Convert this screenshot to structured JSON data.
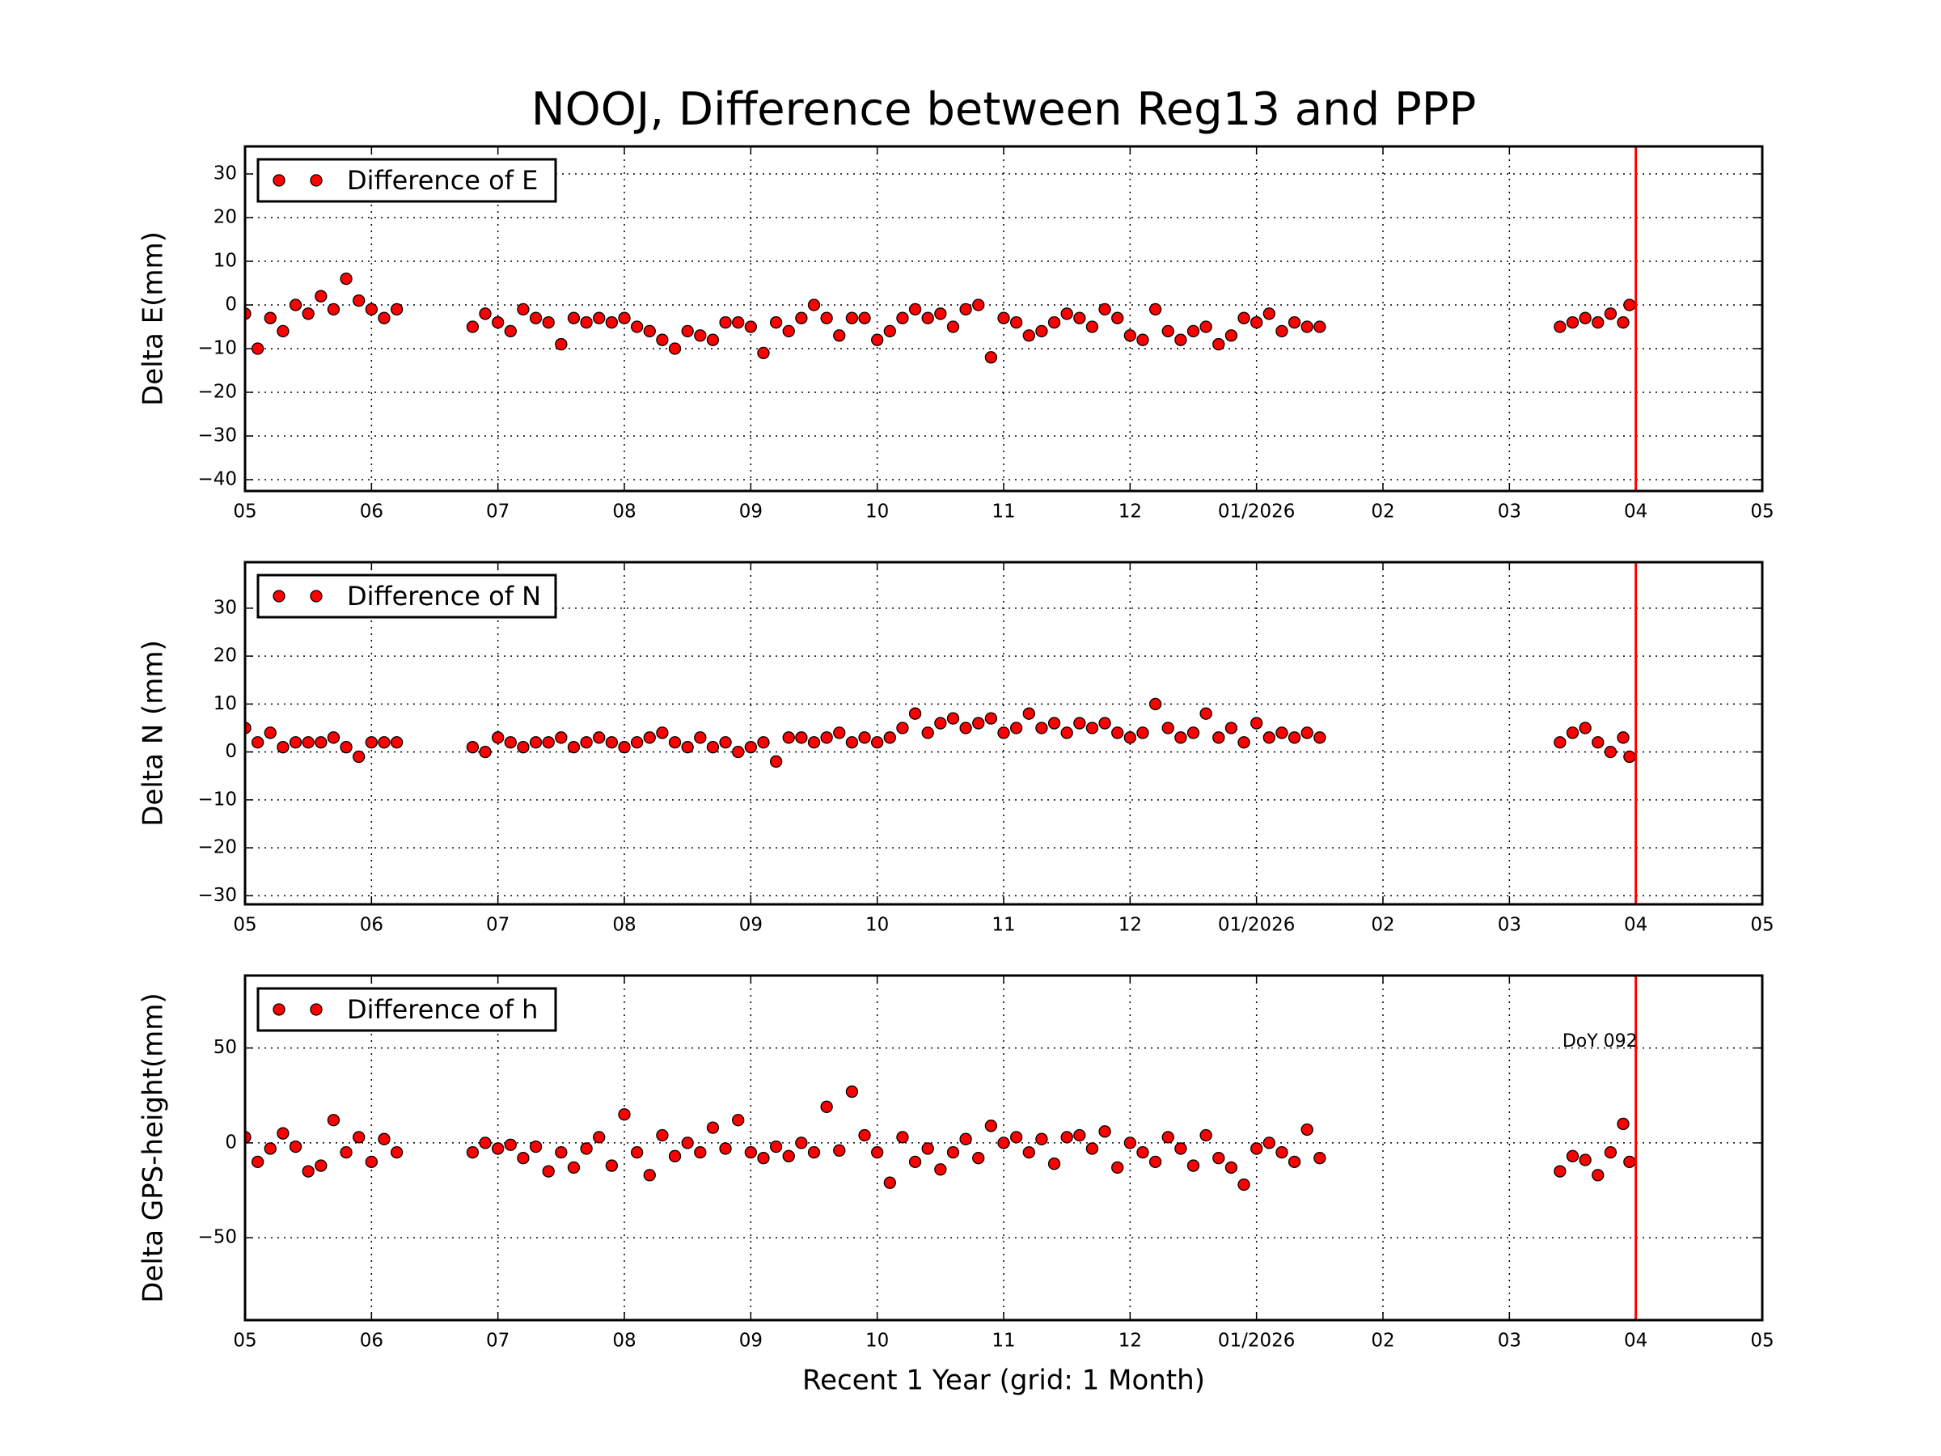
{
  "title": "NOOJ, Difference between Reg13 and PPP",
  "xlabel": "Recent 1 Year (grid: 1 Month)",
  "chart_data": [
    {
      "type": "scatter",
      "ylabel": "Delta E(mm)",
      "grid": true,
      "legend": "upper left",
      "xlim": [
        0,
        12
      ],
      "xticks": [
        {
          "value": 0,
          "label": "05"
        },
        {
          "value": 1,
          "label": "06"
        },
        {
          "value": 2,
          "label": "07"
        },
        {
          "value": 3,
          "label": "08"
        },
        {
          "value": 4,
          "label": "09"
        },
        {
          "value": 5,
          "label": "10"
        },
        {
          "value": 6,
          "label": "11"
        },
        {
          "value": 7,
          "label": "12"
        },
        {
          "value": 8,
          "label": "01/2026"
        },
        {
          "value": 9,
          "label": "02"
        },
        {
          "value": 10,
          "label": "03"
        },
        {
          "value": 11,
          "label": "04"
        },
        {
          "value": 12,
          "label": "05"
        }
      ],
      "ylim": [
        -42.6,
        36.3
      ],
      "yticks": [
        {
          "value": -40,
          "label": "−40"
        },
        {
          "value": -30,
          "label": "−30"
        },
        {
          "value": -20,
          "label": "−20"
        },
        {
          "value": -10,
          "label": "−10"
        },
        0,
        10,
        20,
        30
      ],
      "vline": {
        "x": 11,
        "color": "#ff0000"
      },
      "x": [
        0,
        0.1,
        0.2,
        0.3,
        0.4,
        0.5,
        0.6,
        0.7,
        0.8,
        0.9,
        1.0,
        1.1,
        1.2,
        1.8,
        1.9,
        2.0,
        2.1,
        2.2,
        2.3,
        2.4,
        2.5,
        2.6,
        2.7,
        2.8,
        2.9,
        3.0,
        3.1,
        3.2,
        3.3,
        3.4,
        3.5,
        3.6,
        3.7,
        3.8,
        3.9,
        4.0,
        4.1,
        4.2,
        4.3,
        4.4,
        4.5,
        4.6,
        4.7,
        4.8,
        4.9,
        5.0,
        5.1,
        5.2,
        5.3,
        5.4,
        5.5,
        5.6,
        5.7,
        5.8,
        5.9,
        6.0,
        6.1,
        6.2,
        6.3,
        6.4,
        6.5,
        6.6,
        6.7,
        6.8,
        6.9,
        7.0,
        7.1,
        7.2,
        7.3,
        7.4,
        7.5,
        7.6,
        7.7,
        7.8,
        7.9,
        8.0,
        8.1,
        8.2,
        8.3,
        8.4,
        8.5,
        10.4,
        10.5,
        10.6,
        10.7,
        10.8,
        10.9,
        10.95
      ],
      "series": [
        {
          "name": "Difference of E",
          "color": "#ff0000",
          "values": [
            -2,
            -10,
            -3,
            -6,
            0,
            -2,
            2,
            -1,
            6,
            1,
            -1,
            -3,
            -1,
            -5,
            -2,
            -4,
            -6,
            -1,
            -3,
            -4,
            -9,
            -3,
            -4,
            -3,
            -4,
            -3,
            -5,
            -6,
            -8,
            -10,
            -6,
            -7,
            -8,
            -4,
            -4,
            -5,
            -11,
            -4,
            -6,
            -3,
            0,
            -3,
            -7,
            -3,
            -3,
            -8,
            -6,
            -3,
            -1,
            -3,
            -2,
            -5,
            -1,
            0,
            -12,
            -3,
            -4,
            -7,
            -6,
            -4,
            -2,
            -3,
            -5,
            -1,
            -3,
            -7,
            -8,
            -1,
            -6,
            -8,
            -6,
            -5,
            -9,
            -7,
            -3,
            -4,
            -2,
            -6,
            -4,
            -5,
            -5,
            -5,
            -4,
            -3,
            -4,
            -2,
            -4,
            0
          ]
        }
      ]
    },
    {
      "type": "scatter",
      "ylabel": "Delta N (mm)",
      "grid": true,
      "legend": "upper left",
      "xlim": [
        0,
        12
      ],
      "xticks": [
        {
          "value": 0,
          "label": "05"
        },
        {
          "value": 1,
          "label": "06"
        },
        {
          "value": 2,
          "label": "07"
        },
        {
          "value": 3,
          "label": "08"
        },
        {
          "value": 4,
          "label": "09"
        },
        {
          "value": 5,
          "label": "10"
        },
        {
          "value": 6,
          "label": "11"
        },
        {
          "value": 7,
          "label": "12"
        },
        {
          "value": 8,
          "label": "01/2026"
        },
        {
          "value": 9,
          "label": "02"
        },
        {
          "value": 10,
          "label": "03"
        },
        {
          "value": 11,
          "label": "04"
        },
        {
          "value": 12,
          "label": "05"
        }
      ],
      "ylim": [
        -31.8,
        39.6
      ],
      "yticks": [
        {
          "value": -30,
          "label": "−30"
        },
        {
          "value": -20,
          "label": "−20"
        },
        {
          "value": -10,
          "label": "−10"
        },
        0,
        10,
        20,
        30
      ],
      "vline": {
        "x": 11,
        "color": "#ff0000"
      },
      "x": [
        0,
        0.1,
        0.2,
        0.3,
        0.4,
        0.5,
        0.6,
        0.7,
        0.8,
        0.9,
        1.0,
        1.1,
        1.2,
        1.8,
        1.9,
        2.0,
        2.1,
        2.2,
        2.3,
        2.4,
        2.5,
        2.6,
        2.7,
        2.8,
        2.9,
        3.0,
        3.1,
        3.2,
        3.3,
        3.4,
        3.5,
        3.6,
        3.7,
        3.8,
        3.9,
        4.0,
        4.1,
        4.2,
        4.3,
        4.4,
        4.5,
        4.6,
        4.7,
        4.8,
        4.9,
        5.0,
        5.1,
        5.2,
        5.3,
        5.4,
        5.5,
        5.6,
        5.7,
        5.8,
        5.9,
        6.0,
        6.1,
        6.2,
        6.3,
        6.4,
        6.5,
        6.6,
        6.7,
        6.8,
        6.9,
        7.0,
        7.1,
        7.2,
        7.3,
        7.4,
        7.5,
        7.6,
        7.7,
        7.8,
        7.9,
        8.0,
        8.1,
        8.2,
        8.3,
        8.4,
        8.5,
        10.4,
        10.5,
        10.6,
        10.7,
        10.8,
        10.9,
        10.95
      ],
      "series": [
        {
          "name": "Difference of N",
          "color": "#ff0000",
          "values": [
            5,
            2,
            4,
            1,
            2,
            2,
            2,
            3,
            1,
            -1,
            2,
            2,
            2,
            1,
            0,
            3,
            2,
            1,
            2,
            2,
            3,
            1,
            2,
            3,
            2,
            1,
            2,
            3,
            4,
            2,
            1,
            3,
            1,
            2,
            0,
            1,
            2,
            -2,
            3,
            3,
            2,
            3,
            4,
            2,
            3,
            2,
            3,
            5,
            8,
            4,
            6,
            7,
            5,
            6,
            7,
            4,
            5,
            8,
            5,
            6,
            4,
            6,
            5,
            6,
            4,
            3,
            4,
            10,
            5,
            3,
            4,
            8,
            3,
            5,
            2,
            6,
            3,
            4,
            3,
            4,
            3,
            2,
            4,
            5,
            2,
            0,
            3,
            -1
          ]
        }
      ]
    },
    {
      "type": "scatter",
      "ylabel": "Delta GPS-height(mm)",
      "grid": true,
      "legend": "upper left",
      "xlim": [
        0,
        12
      ],
      "xticks": [
        {
          "value": 0,
          "label": "05"
        },
        {
          "value": 1,
          "label": "06"
        },
        {
          "value": 2,
          "label": "07"
        },
        {
          "value": 3,
          "label": "08"
        },
        {
          "value": 4,
          "label": "09"
        },
        {
          "value": 5,
          "label": "10"
        },
        {
          "value": 6,
          "label": "11"
        },
        {
          "value": 7,
          "label": "12"
        },
        {
          "value": 8,
          "label": "01/2026"
        },
        {
          "value": 9,
          "label": "02"
        },
        {
          "value": 10,
          "label": "03"
        },
        {
          "value": 11,
          "label": "04"
        },
        {
          "value": 12,
          "label": "05"
        }
      ],
      "ylim": [
        -93.4,
        88.2
      ],
      "yticks": [
        {
          "value": -50,
          "label": "−50"
        },
        0,
        50
      ],
      "vline": {
        "x": 11,
        "color": "#ff0000"
      },
      "annotation": {
        "text": "DoY 092",
        "x": 11,
        "y": 54
      },
      "x": [
        0,
        0.1,
        0.2,
        0.3,
        0.4,
        0.5,
        0.6,
        0.7,
        0.8,
        0.9,
        1.0,
        1.1,
        1.2,
        1.8,
        1.9,
        2.0,
        2.1,
        2.2,
        2.3,
        2.4,
        2.5,
        2.6,
        2.7,
        2.8,
        2.9,
        3.0,
        3.1,
        3.2,
        3.3,
        3.4,
        3.5,
        3.6,
        3.7,
        3.8,
        3.9,
        4.0,
        4.1,
        4.2,
        4.3,
        4.4,
        4.5,
        4.6,
        4.7,
        4.8,
        4.9,
        5.0,
        5.1,
        5.2,
        5.3,
        5.4,
        5.5,
        5.6,
        5.7,
        5.8,
        5.9,
        6.0,
        6.1,
        6.2,
        6.3,
        6.4,
        6.5,
        6.6,
        6.7,
        6.8,
        6.9,
        7.0,
        7.1,
        7.2,
        7.3,
        7.4,
        7.5,
        7.6,
        7.7,
        7.8,
        7.9,
        8.0,
        8.1,
        8.2,
        8.3,
        8.4,
        8.5,
        10.4,
        10.5,
        10.6,
        10.7,
        10.8,
        10.9,
        10.95
      ],
      "series": [
        {
          "name": "Difference of h",
          "color": "#ff0000",
          "values": [
            3,
            -10,
            -3,
            5,
            -2,
            -15,
            -12,
            12,
            -5,
            3,
            -10,
            2,
            -5,
            -5,
            0,
            -3,
            -1,
            -8,
            -2,
            -15,
            -5,
            -13,
            -3,
            3,
            -12,
            15,
            -5,
            -17,
            4,
            -7,
            0,
            -5,
            8,
            -3,
            12,
            -5,
            -8,
            -2,
            -7,
            0,
            -5,
            19,
            -4,
            27,
            4,
            -5,
            -21,
            3,
            -10,
            -3,
            -14,
            -5,
            2,
            -8,
            9,
            0,
            3,
            -5,
            2,
            -11,
            3,
            4,
            -3,
            6,
            -13,
            0,
            -5,
            -10,
            3,
            -3,
            -12,
            4,
            -8,
            -13,
            -22,
            -3,
            0,
            -5,
            -10,
            7,
            -8,
            -15,
            -7,
            -9,
            -17,
            -5,
            10,
            -10
          ]
        }
      ]
    }
  ]
}
